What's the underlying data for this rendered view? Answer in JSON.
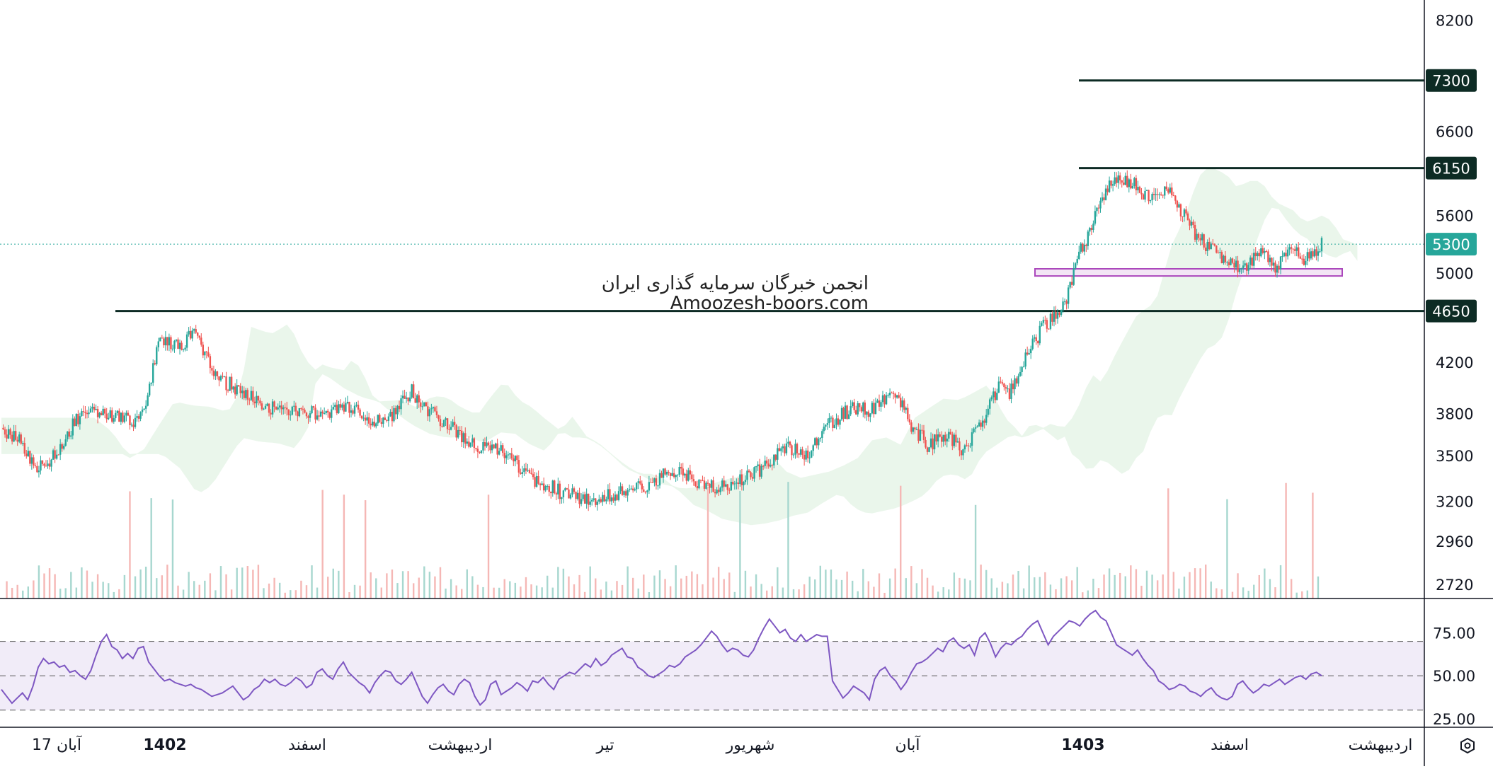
{
  "watermark": {
    "line1": "انجمن خبرگان سرمایه گذاری ایران",
    "line2": "Amoozesh-boors.com"
  },
  "colors": {
    "up": "#26a69a",
    "down": "#ef5350",
    "levels": "#0d2b24",
    "rsi": "#7e57c2",
    "box": "#ab47bc"
  },
  "icons": {
    "settings": "hexagon-settings-icon"
  },
  "chart_data": [
    {
      "type": "candlestick",
      "ylim": [
        2650,
        8450
      ],
      "yscale": "log",
      "y_ticks": [
        "8200",
        "6600",
        "5600",
        "5000",
        "4200",
        "3800",
        "3500",
        "3200",
        "2960",
        "2720"
      ],
      "x_labels": [
        "17 آبان",
        "1402",
        "اسفند",
        "اردیبهشت",
        "تیر",
        "شهریور",
        "آبان",
        "1403",
        "اسفند",
        "اردیبهشت"
      ],
      "horizontal_levels": [
        {
          "value": 7300,
          "label": "7300"
        },
        {
          "value": 6150,
          "label": "6150"
        },
        {
          "value": 4650,
          "label": "4650"
        }
      ],
      "last_price": {
        "value": 5300,
        "label": "5300"
      },
      "support_box": {
        "from": 4980,
        "to": 5050
      },
      "ichimoku_cloud": true,
      "volume": true,
      "close_path": [
        [
          0,
          3700
        ],
        [
          10,
          3600
        ],
        [
          20,
          3420
        ],
        [
          28,
          3480
        ],
        [
          35,
          3620
        ],
        [
          45,
          3820
        ],
        [
          55,
          3790
        ],
        [
          65,
          3780
        ],
        [
          75,
          3740
        ],
        [
          82,
          3900
        ],
        [
          88,
          4420
        ],
        [
          95,
          4380
        ],
        [
          102,
          4360
        ],
        [
          107,
          4460
        ],
        [
          112,
          4360
        ],
        [
          118,
          4150
        ],
        [
          125,
          4050
        ],
        [
          132,
          4000
        ],
        [
          140,
          3920
        ],
        [
          150,
          3850
        ],
        [
          160,
          3820
        ],
        [
          172,
          3830
        ],
        [
          180,
          3780
        ],
        [
          190,
          3860
        ],
        [
          198,
          3850
        ],
        [
          205,
          3780
        ],
        [
          215,
          3720
        ],
        [
          222,
          3850
        ],
        [
          230,
          3980
        ],
        [
          238,
          3830
        ],
        [
          245,
          3780
        ],
        [
          252,
          3700
        ],
        [
          260,
          3620
        ],
        [
          268,
          3560
        ],
        [
          275,
          3560
        ],
        [
          282,
          3520
        ],
        [
          290,
          3440
        ],
        [
          298,
          3350
        ],
        [
          306,
          3310
        ],
        [
          314,
          3260
        ],
        [
          322,
          3240
        ],
        [
          330,
          3220
        ],
        [
          338,
          3230
        ],
        [
          346,
          3250
        ],
        [
          354,
          3280
        ],
        [
          362,
          3300
        ],
        [
          370,
          3360
        ],
        [
          380,
          3430
        ],
        [
          388,
          3330
        ],
        [
          396,
          3290
        ],
        [
          404,
          3310
        ],
        [
          412,
          3330
        ],
        [
          420,
          3370
        ],
        [
          428,
          3420
        ],
        [
          436,
          3540
        ],
        [
          444,
          3560
        ],
        [
          452,
          3510
        ],
        [
          460,
          3700
        ],
        [
          468,
          3770
        ],
        [
          476,
          3840
        ],
        [
          485,
          3830
        ],
        [
          492,
          3880
        ],
        [
          500,
          3940
        ],
        [
          505,
          3860
        ],
        [
          510,
          3700
        ],
        [
          515,
          3650
        ],
        [
          520,
          3560
        ],
        [
          525,
          3660
        ],
        [
          530,
          3640
        ],
        [
          535,
          3590
        ],
        [
          540,
          3540
        ],
        [
          545,
          3660
        ],
        [
          550,
          3720
        ],
        [
          555,
          3900
        ],
        [
          560,
          4020
        ],
        [
          565,
          3960
        ],
        [
          570,
          4120
        ],
        [
          575,
          4260
        ],
        [
          580,
          4400
        ],
        [
          585,
          4540
        ],
        [
          590,
          4580
        ],
        [
          593,
          4620
        ],
        [
          596,
          4700
        ],
        [
          600,
          4940
        ],
        [
          605,
          5250
        ],
        [
          610,
          5400
        ],
        [
          615,
          5700
        ],
        [
          620,
          5950
        ],
        [
          625,
          6050
        ],
        [
          630,
          6000
        ],
        [
          635,
          5950
        ],
        [
          640,
          5820
        ],
        [
          645,
          5850
        ],
        [
          650,
          5900
        ],
        [
          655,
          5850
        ],
        [
          660,
          5700
        ],
        [
          665,
          5530
        ],
        [
          670,
          5400
        ],
        [
          675,
          5300
        ],
        [
          680,
          5250
        ],
        [
          685,
          5150
        ],
        [
          690,
          5100
        ],
        [
          695,
          5050
        ],
        [
          700,
          5100
        ],
        [
          705,
          5250
        ],
        [
          710,
          5150
        ],
        [
          715,
          5050
        ],
        [
          720,
          5200
        ],
        [
          725,
          5280
        ],
        [
          730,
          5150
        ],
        [
          735,
          5200
        ],
        [
          740,
          5300
        ]
      ]
    },
    {
      "type": "line",
      "ylim": [
        20,
        95
      ],
      "y_ticks": [
        "75.00",
        "50.00",
        "25.00"
      ],
      "band": [
        30,
        70
      ],
      "mid": 50,
      "values": [
        42,
        38,
        34,
        37,
        40,
        36,
        44,
        55,
        60,
        57,
        58,
        55,
        56,
        52,
        53,
        50,
        48,
        53,
        62,
        70,
        74,
        67,
        65,
        60,
        63,
        60,
        66,
        67,
        58,
        54,
        50,
        47,
        48,
        46,
        45,
        44,
        45,
        43,
        42,
        40,
        38,
        39,
        40,
        42,
        44,
        40,
        36,
        38,
        42,
        44,
        48,
        46,
        48,
        45,
        44,
        46,
        49,
        47,
        43,
        45,
        52,
        54,
        50,
        48,
        54,
        58,
        52,
        49,
        46,
        44,
        40,
        46,
        50,
        53,
        52,
        47,
        45,
        48,
        52,
        45,
        38,
        34,
        39,
        43,
        45,
        41,
        39,
        45,
        48,
        46,
        38,
        33,
        36,
        45,
        47,
        39,
        41,
        43,
        46,
        44,
        41,
        47,
        46,
        49,
        45,
        42,
        48,
        50,
        52,
        51,
        54,
        57,
        55,
        60,
        56,
        58,
        62,
        64,
        66,
        61,
        60,
        55,
        53,
        50,
        49,
        51,
        53,
        56,
        55,
        57,
        61,
        63,
        65,
        68,
        72,
        76,
        73,
        68,
        64,
        66,
        65,
        62,
        61,
        65,
        72,
        78,
        83,
        79,
        75,
        77,
        72,
        70,
        74,
        70,
        72,
        74,
        73,
        73,
        47,
        42,
        37,
        40,
        44,
        42,
        40,
        36,
        48,
        53,
        55,
        50,
        47,
        42,
        46,
        52,
        57,
        58,
        60,
        63,
        66,
        64,
        70,
        72,
        68,
        66,
        68,
        62,
        72,
        75,
        69,
        61,
        66,
        69,
        68,
        71,
        73,
        77,
        80,
        82,
        75,
        68,
        73,
        76,
        79,
        82,
        81,
        79,
        83,
        86,
        88,
        84,
        82,
        75,
        68,
        66,
        64,
        62,
        65,
        60,
        56,
        53,
        47,
        45,
        42,
        43,
        45,
        44,
        41,
        40,
        38,
        41,
        43,
        39,
        37,
        36,
        38,
        45,
        47,
        43,
        40,
        42,
        45,
        44,
        46,
        48,
        45,
        47,
        49,
        50,
        48,
        51,
        52,
        50
      ]
    }
  ]
}
